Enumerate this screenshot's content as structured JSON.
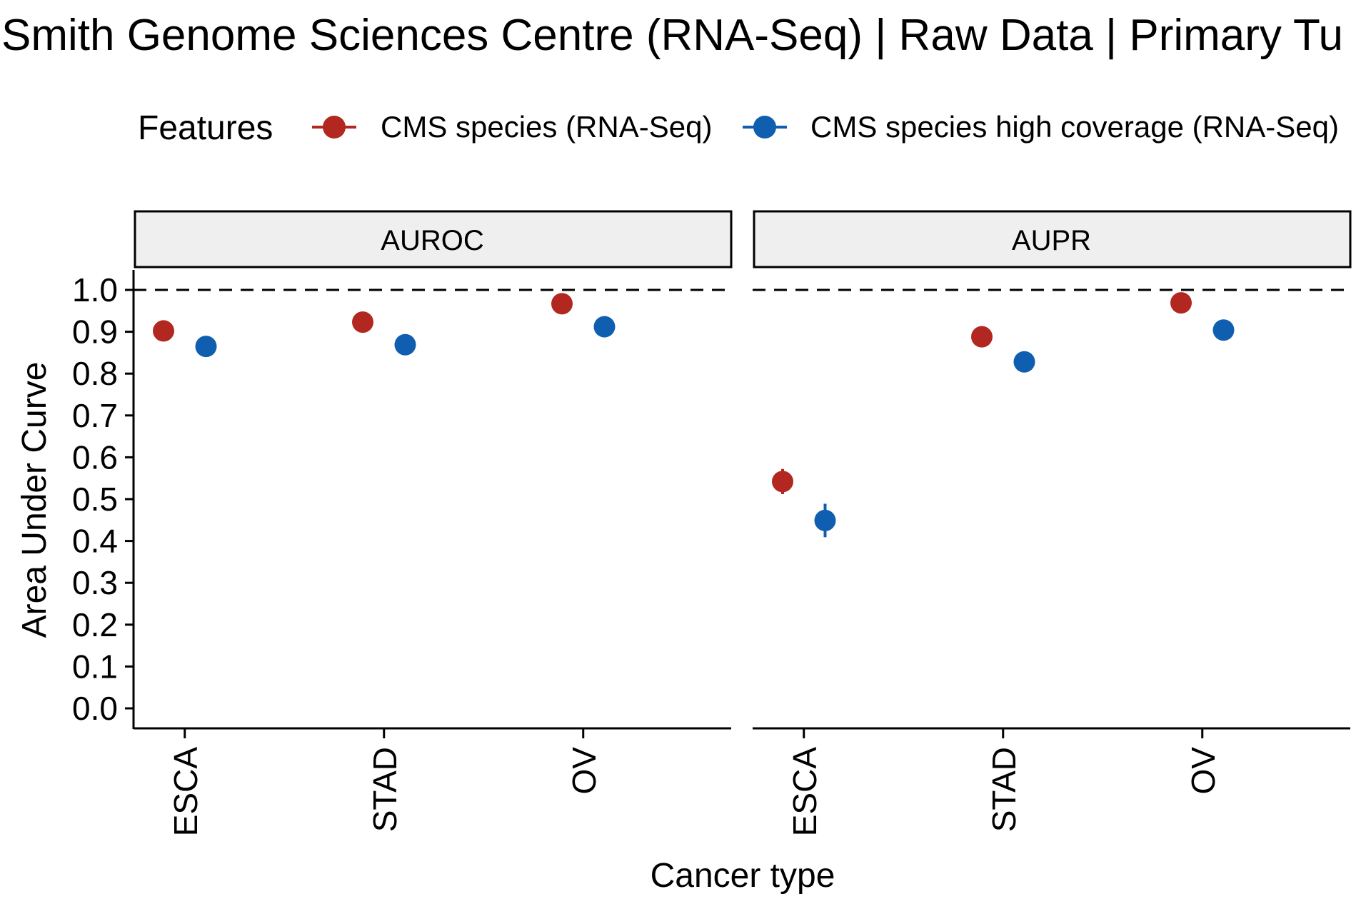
{
  "chart_data": {
    "type": "scatter",
    "title": "Smith Genome Sciences Centre (RNA-Seq) | Raw Data | Primary Tu",
    "xlabel": "Cancer type",
    "ylabel": "Area Under Curve",
    "ylim": [
      0.0,
      1.0
    ],
    "yticks": [
      "0.0",
      "0.1",
      "0.2",
      "0.3",
      "0.4",
      "0.5",
      "0.6",
      "0.7",
      "0.8",
      "0.9",
      "1.0"
    ],
    "reference_line": 1.0,
    "categories": [
      "ESCA",
      "STAD",
      "OV"
    ],
    "legend": {
      "title": "Features",
      "placement": "top"
    },
    "panels": [
      {
        "label": "AUROC",
        "series": [
          {
            "name": "CMS species (RNA-Seq)",
            "color": "#B2271F",
            "values": [
              0.902,
              0.923,
              0.967
            ],
            "error": [
              0.0,
              0.0,
              0.0
            ]
          },
          {
            "name": "CMS species high coverage (RNA-Seq)",
            "color": "#105EAF",
            "values": [
              0.865,
              0.869,
              0.912
            ],
            "error": [
              0.0,
              0.0,
              0.0
            ]
          }
        ]
      },
      {
        "label": "AUPR",
        "series": [
          {
            "name": "CMS species (RNA-Seq)",
            "color": "#B2271F",
            "values": [
              0.542,
              0.888,
              0.969
            ],
            "error": [
              0.03,
              0.0,
              0.0
            ]
          },
          {
            "name": "CMS species high coverage (RNA-Seq)",
            "color": "#105EAF",
            "values": [
              0.449,
              0.828,
              0.904
            ],
            "error": [
              0.04,
              0.0,
              0.0
            ]
          }
        ]
      }
    ]
  }
}
